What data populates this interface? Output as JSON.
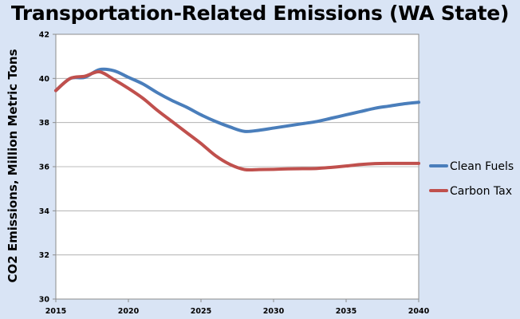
{
  "chart_data": {
    "type": "line",
    "title": "Transportation-Related Emissions (WA State)",
    "xlabel": "",
    "ylabel": "CO2 Emissions, Million Metric Tons",
    "xlim": [
      2015,
      2040
    ],
    "ylim": [
      30,
      42
    ],
    "x_ticks": [
      2015,
      2020,
      2025,
      2030,
      2035,
      2040
    ],
    "y_ticks": [
      30,
      32,
      34,
      36,
      38,
      40,
      42
    ],
    "grid": true,
    "legend_position": "right",
    "series": [
      {
        "name": "Clean Fuels",
        "color": "#4a7ebb",
        "x": [
          2015,
          2016,
          2017,
          2018,
          2019,
          2020,
          2021,
          2022,
          2023,
          2024,
          2025,
          2026,
          2027,
          2028,
          2029,
          2030,
          2031,
          2032,
          2033,
          2034,
          2035,
          2036,
          2037,
          2038,
          2039,
          2040
        ],
        "values": [
          39.45,
          40.0,
          40.05,
          40.4,
          40.35,
          40.05,
          39.75,
          39.35,
          39.0,
          38.7,
          38.35,
          38.05,
          37.8,
          37.6,
          37.65,
          37.75,
          37.85,
          37.95,
          38.05,
          38.2,
          38.35,
          38.5,
          38.65,
          38.75,
          38.85,
          38.92
        ]
      },
      {
        "name": "Carbon Tax",
        "color": "#c0504d",
        "x": [
          2015,
          2016,
          2017,
          2018,
          2019,
          2020,
          2021,
          2022,
          2023,
          2024,
          2025,
          2026,
          2027,
          2028,
          2029,
          2030,
          2031,
          2032,
          2033,
          2034,
          2035,
          2036,
          2037,
          2038,
          2039,
          2040
        ],
        "values": [
          39.45,
          40.0,
          40.1,
          40.3,
          39.95,
          39.55,
          39.1,
          38.55,
          38.05,
          37.55,
          37.05,
          36.5,
          36.1,
          35.87,
          35.87,
          35.88,
          35.9,
          35.91,
          35.92,
          35.97,
          36.03,
          36.1,
          36.14,
          36.15,
          36.15,
          36.15
        ]
      }
    ]
  }
}
